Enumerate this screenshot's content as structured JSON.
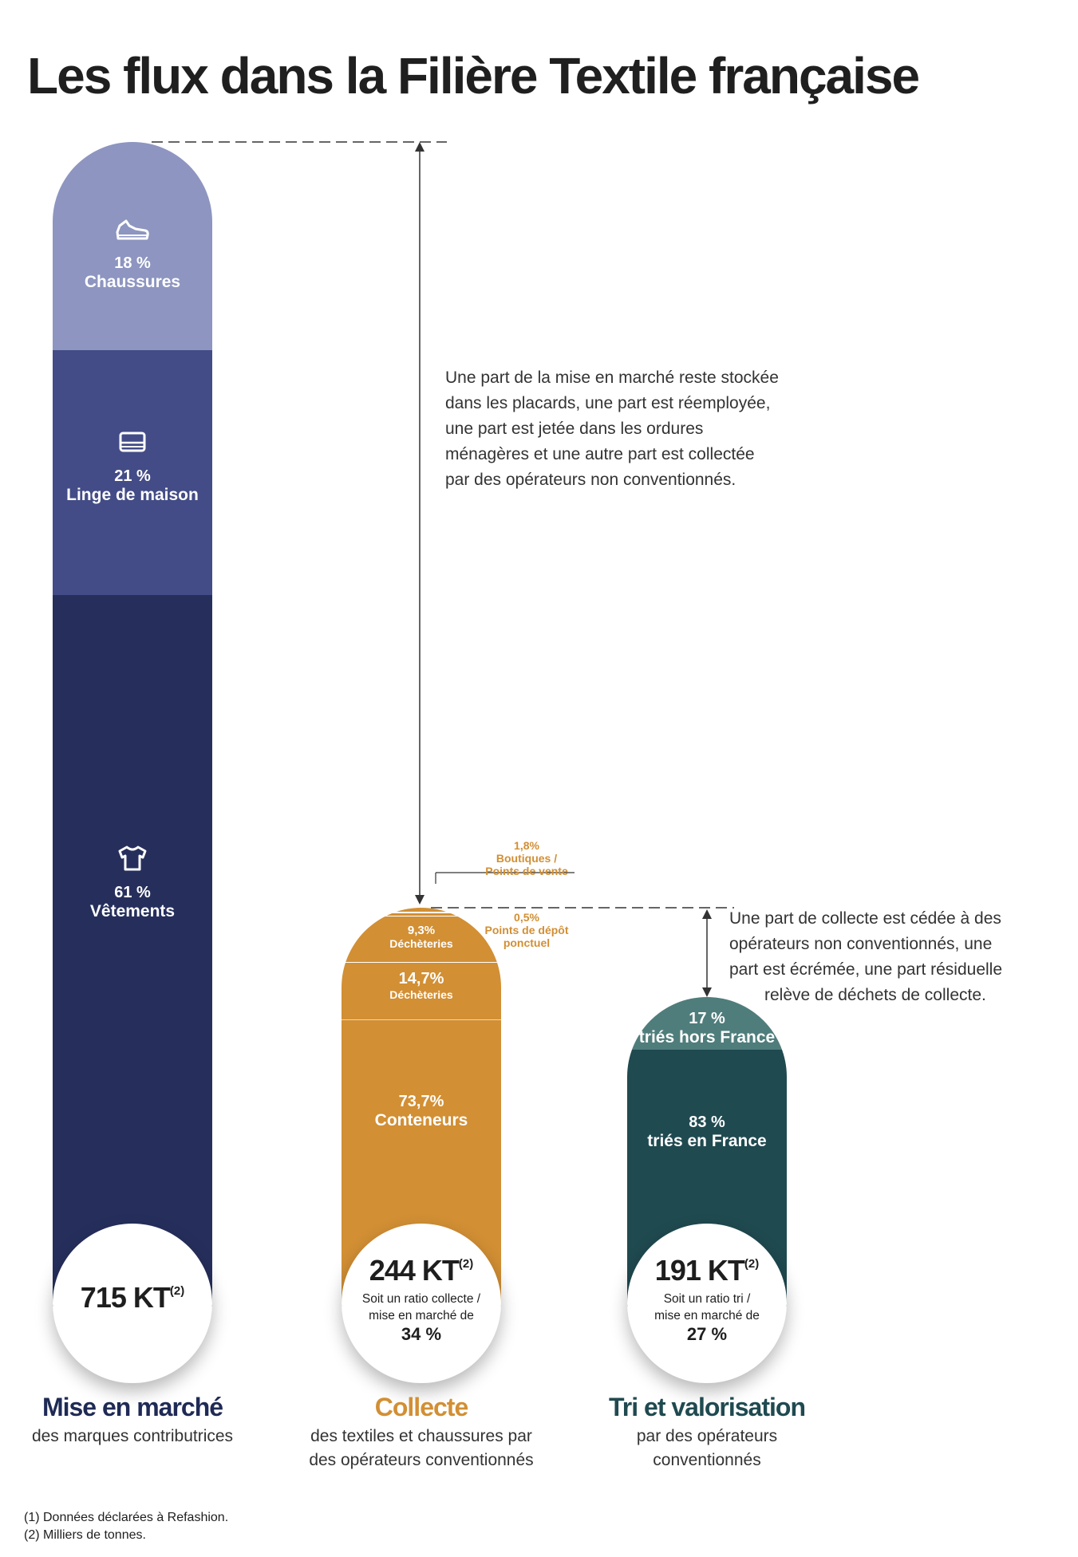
{
  "title": "Les flux dans la Filière Textile française",
  "chart_data": {
    "type": "bar",
    "columns": [
      {
        "name": "Mise en marché",
        "subtitle": "des marques contributrices",
        "total": "715 KT",
        "total_note": "(2)",
        "total_kt": 715,
        "color_title": "#1f2a55",
        "segments": [
          {
            "pct": "18 %",
            "label": "Chaussures",
            "value": 18,
            "color": "#8d95c0",
            "icon": "shoe-icon"
          },
          {
            "pct": "21 %",
            "label": "Linge de maison",
            "value": 21,
            "color": "#434c86",
            "icon": "linen-icon"
          },
          {
            "pct": "61 %",
            "label": "Vêtements",
            "value": 61,
            "color": "#262f5c",
            "icon": "tshirt-icon"
          }
        ]
      },
      {
        "name": "Collecte",
        "subtitle_lines": [
          "des textiles et chaussures par",
          "des opérateurs conventionnés"
        ],
        "total": "244 KT",
        "total_note": "(2)",
        "total_kt": 244,
        "ratio_lines": [
          "Soit un ratio collecte /",
          "mise en marché de"
        ],
        "ratio_pct": "34 %",
        "color_title": "#d28f34",
        "segments": [
          {
            "pct": "1,8%",
            "label_lines": [
              "Boutiques /",
              "Points de vente"
            ],
            "value": 1.8
          },
          {
            "pct": "0,5%",
            "label_lines": [
              "Points de dépôt",
              "ponctuel"
            ],
            "value": 0.5
          },
          {
            "pct": "9,3%",
            "label": "Déchèteries",
            "value": 9.3
          },
          {
            "pct": "14,7%",
            "label": "Déchèteries",
            "value": 14.7
          },
          {
            "pct": "73,7%",
            "label": "Conteneurs",
            "value": 73.7
          }
        ]
      },
      {
        "name": "Tri et valorisation",
        "subtitle_lines": [
          "par des opérateurs",
          "conventionnés"
        ],
        "total": "191 KT",
        "total_note": "(2)",
        "total_kt": 191,
        "ratio_lines": [
          "Soit un ratio tri /",
          "mise en marché de"
        ],
        "ratio_pct": "27 %",
        "color_title": "#1f4a50",
        "segments": [
          {
            "pct": "17 %",
            "label": "triés hors France",
            "value": 17,
            "color": "#4f7d7b"
          },
          {
            "pct": "83 %",
            "label": "triés en France",
            "value": 83,
            "color": "#1f4a50"
          }
        ]
      }
    ]
  },
  "notes": {
    "note1": [
      "Une part de la mise en marché reste stockée",
      "dans les placards, une part est réemployée,",
      "une part est jetée dans les ordures",
      "ménagères et une autre part est collectée",
      "par des opérateurs non conventionnés."
    ],
    "note2": [
      "Une part de collecte est cédée à des",
      "opérateurs non conventionnés, une",
      "part est écrémée, une part résiduelle",
      "relève de déchets de collecte."
    ]
  },
  "footnotes": [
    "(1) Données déclarées à Refashion.",
    "(2) Milliers de tonnes."
  ],
  "colors": {
    "collecte": "#d28f34",
    "collecte_light": "#dca05a",
    "tri": "#1f4a50",
    "tri_light": "#4f7d7b"
  }
}
